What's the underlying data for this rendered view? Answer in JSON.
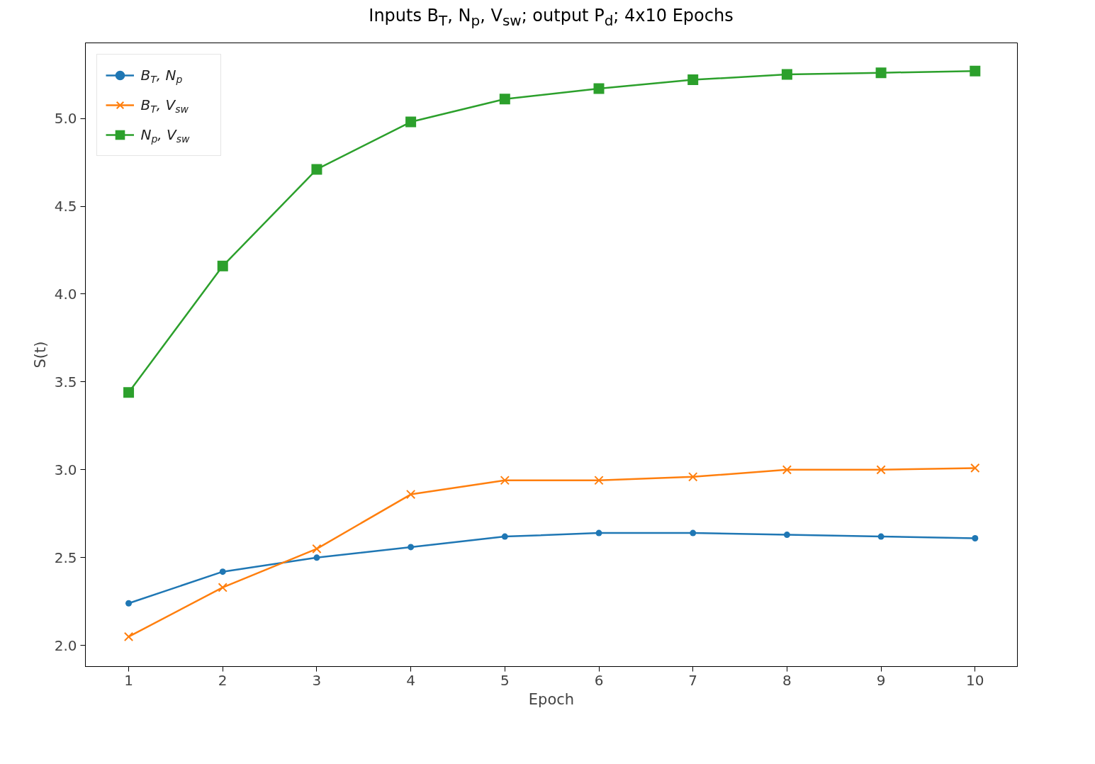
{
  "chart_data": {
    "type": "line",
    "title": "Inputs B$_{T}$, N$_{p}$, V$_{sw}$; output P$_{d}$; 4x10 Epochs",
    "xlabel": "Epoch",
    "ylabel": "S(t)",
    "x": [
      1,
      2,
      3,
      4,
      5,
      6,
      7,
      8,
      9,
      10
    ],
    "series": [
      {
        "name": "B$_{T}$, N$_{p}$",
        "color": "#1f77b4",
        "marker": "circle",
        "values": [
          2.24,
          2.42,
          2.5,
          2.56,
          2.62,
          2.64,
          2.64,
          2.63,
          2.62,
          2.61
        ]
      },
      {
        "name": "B$_{T}$, V$_{sw}$",
        "color": "#ff7f0e",
        "marker": "cross",
        "values": [
          2.05,
          2.33,
          2.55,
          2.86,
          2.94,
          2.94,
          2.96,
          3.0,
          3.0,
          3.01
        ]
      },
      {
        "name": "N$_{p}$, V$_{sw}$",
        "color": "#2ca02c",
        "marker": "square",
        "values": [
          3.44,
          4.16,
          4.71,
          4.98,
          5.11,
          5.17,
          5.22,
          5.25,
          5.26,
          5.27
        ]
      }
    ],
    "xlim": [
      0.54,
      10.45
    ],
    "ylim": [
      1.88,
      5.43
    ],
    "xticks": [
      1,
      2,
      3,
      4,
      5,
      6,
      7,
      8,
      9,
      10
    ],
    "yticks": [
      {
        "value": 2.0,
        "label": "2.0"
      },
      {
        "value": 2.5,
        "label": "2.5"
      },
      {
        "value": 3.0,
        "label": "3.0"
      },
      {
        "value": 3.5,
        "label": "3.5"
      },
      {
        "value": 4.0,
        "label": "4.0"
      },
      {
        "value": 4.5,
        "label": "4.5"
      },
      {
        "value": 5.0,
        "label": "5.0"
      }
    ],
    "legend": "top left",
    "grid": false,
    "line_style": "solid"
  }
}
